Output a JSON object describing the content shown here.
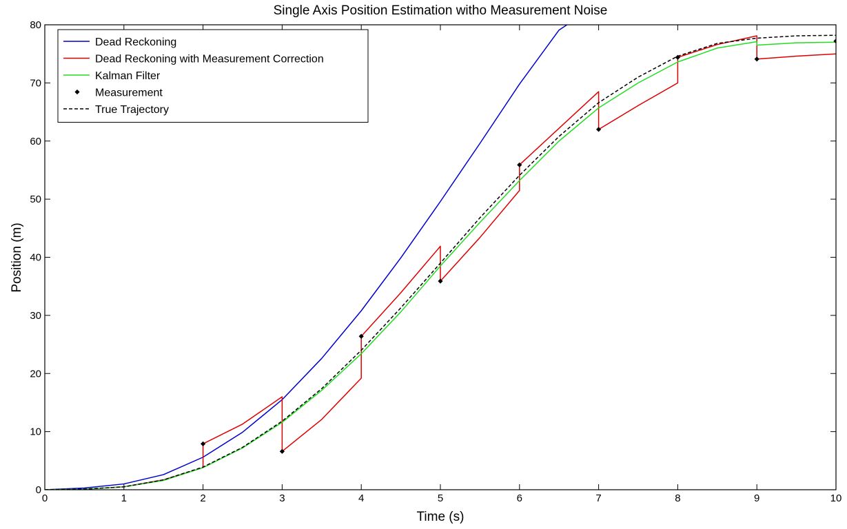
{
  "chart_data": {
    "type": "line",
    "title": "Single Axis Position Estimation witho Measurement Noise",
    "xlabel": "Time (s)",
    "ylabel": "Position (m)",
    "xlim": [
      0,
      10
    ],
    "ylim": [
      0,
      80
    ],
    "xticks": [
      0,
      1,
      2,
      3,
      4,
      5,
      6,
      7,
      8,
      9,
      10
    ],
    "yticks": [
      0,
      10,
      20,
      30,
      40,
      50,
      60,
      70,
      80
    ],
    "grid": false,
    "legend_position": "top-left",
    "series": [
      {
        "name": "Dead Reckoning",
        "color": "#0000cc",
        "style": "solid",
        "x": [
          0,
          0.5,
          1,
          1.5,
          2,
          2.5,
          3,
          3.5,
          4,
          4.5,
          5,
          5.5,
          6,
          6.5,
          6.6
        ],
        "y": [
          0,
          0.3,
          1.0,
          2.6,
          5.6,
          9.9,
          15.5,
          22.6,
          30.8,
          39.9,
          49.6,
          59.6,
          69.8,
          79.1,
          80.0
        ]
      },
      {
        "name": "Dead Reckoning with Measurement Correction",
        "color": "#dd0000",
        "style": "solid",
        "x": [
          0,
          0.5,
          1,
          1.5,
          2,
          2,
          2.5,
          3,
          3,
          3.5,
          4,
          4,
          4.5,
          5,
          5,
          5.5,
          6,
          6,
          6.5,
          7,
          7,
          7.5,
          8,
          8,
          8.5,
          9,
          9,
          9.5,
          10
        ],
        "y": [
          0,
          0.1,
          0.5,
          1.7,
          3.8,
          7.9,
          11.3,
          16.0,
          6.6,
          12.1,
          19.2,
          26.4,
          33.9,
          41.9,
          35.9,
          43.4,
          51.5,
          55.9,
          62.2,
          68.5,
          62.0,
          66.1,
          70.0,
          74.4,
          76.6,
          78.1,
          74.1,
          74.6,
          75.0
        ]
      },
      {
        "name": "Kalman Filter",
        "color": "#22dd22",
        "style": "solid",
        "x": [
          0,
          0.5,
          1,
          1.5,
          2,
          2.5,
          3,
          3.5,
          4,
          4.5,
          5,
          5.5,
          6,
          6.5,
          7,
          7.5,
          8,
          8.5,
          9,
          9,
          9.5,
          10
        ],
        "y": [
          0,
          0.1,
          0.5,
          1.6,
          3.8,
          7.2,
          11.6,
          17.1,
          23.4,
          30.6,
          38.5,
          46.0,
          53.2,
          60.0,
          65.7,
          70.0,
          73.6,
          76.0,
          77.1,
          76.5,
          76.9,
          77.0
        ]
      },
      {
        "name": "Measurement",
        "color": "#000000",
        "style": "marker",
        "x": [
          2,
          3,
          4,
          5,
          6,
          7,
          8,
          9,
          10
        ],
        "y": [
          7.9,
          6.6,
          26.4,
          35.9,
          55.9,
          62.0,
          74.4,
          74.1,
          77.2
        ]
      },
      {
        "name": "True Trajectory",
        "color": "#000000",
        "style": "dashed",
        "x": [
          0,
          0.5,
          1,
          1.5,
          2,
          2.5,
          3,
          3.5,
          4,
          4.5,
          5,
          5.5,
          6,
          6.5,
          7,
          7.5,
          8,
          8.5,
          9,
          9.5,
          10
        ],
        "y": [
          0,
          0.1,
          0.5,
          1.7,
          3.9,
          7.3,
          11.8,
          17.4,
          24.0,
          31.3,
          39.0,
          46.8,
          54.1,
          60.8,
          66.6,
          71.0,
          74.6,
          76.8,
          77.7,
          78.1,
          78.2
        ]
      }
    ]
  }
}
